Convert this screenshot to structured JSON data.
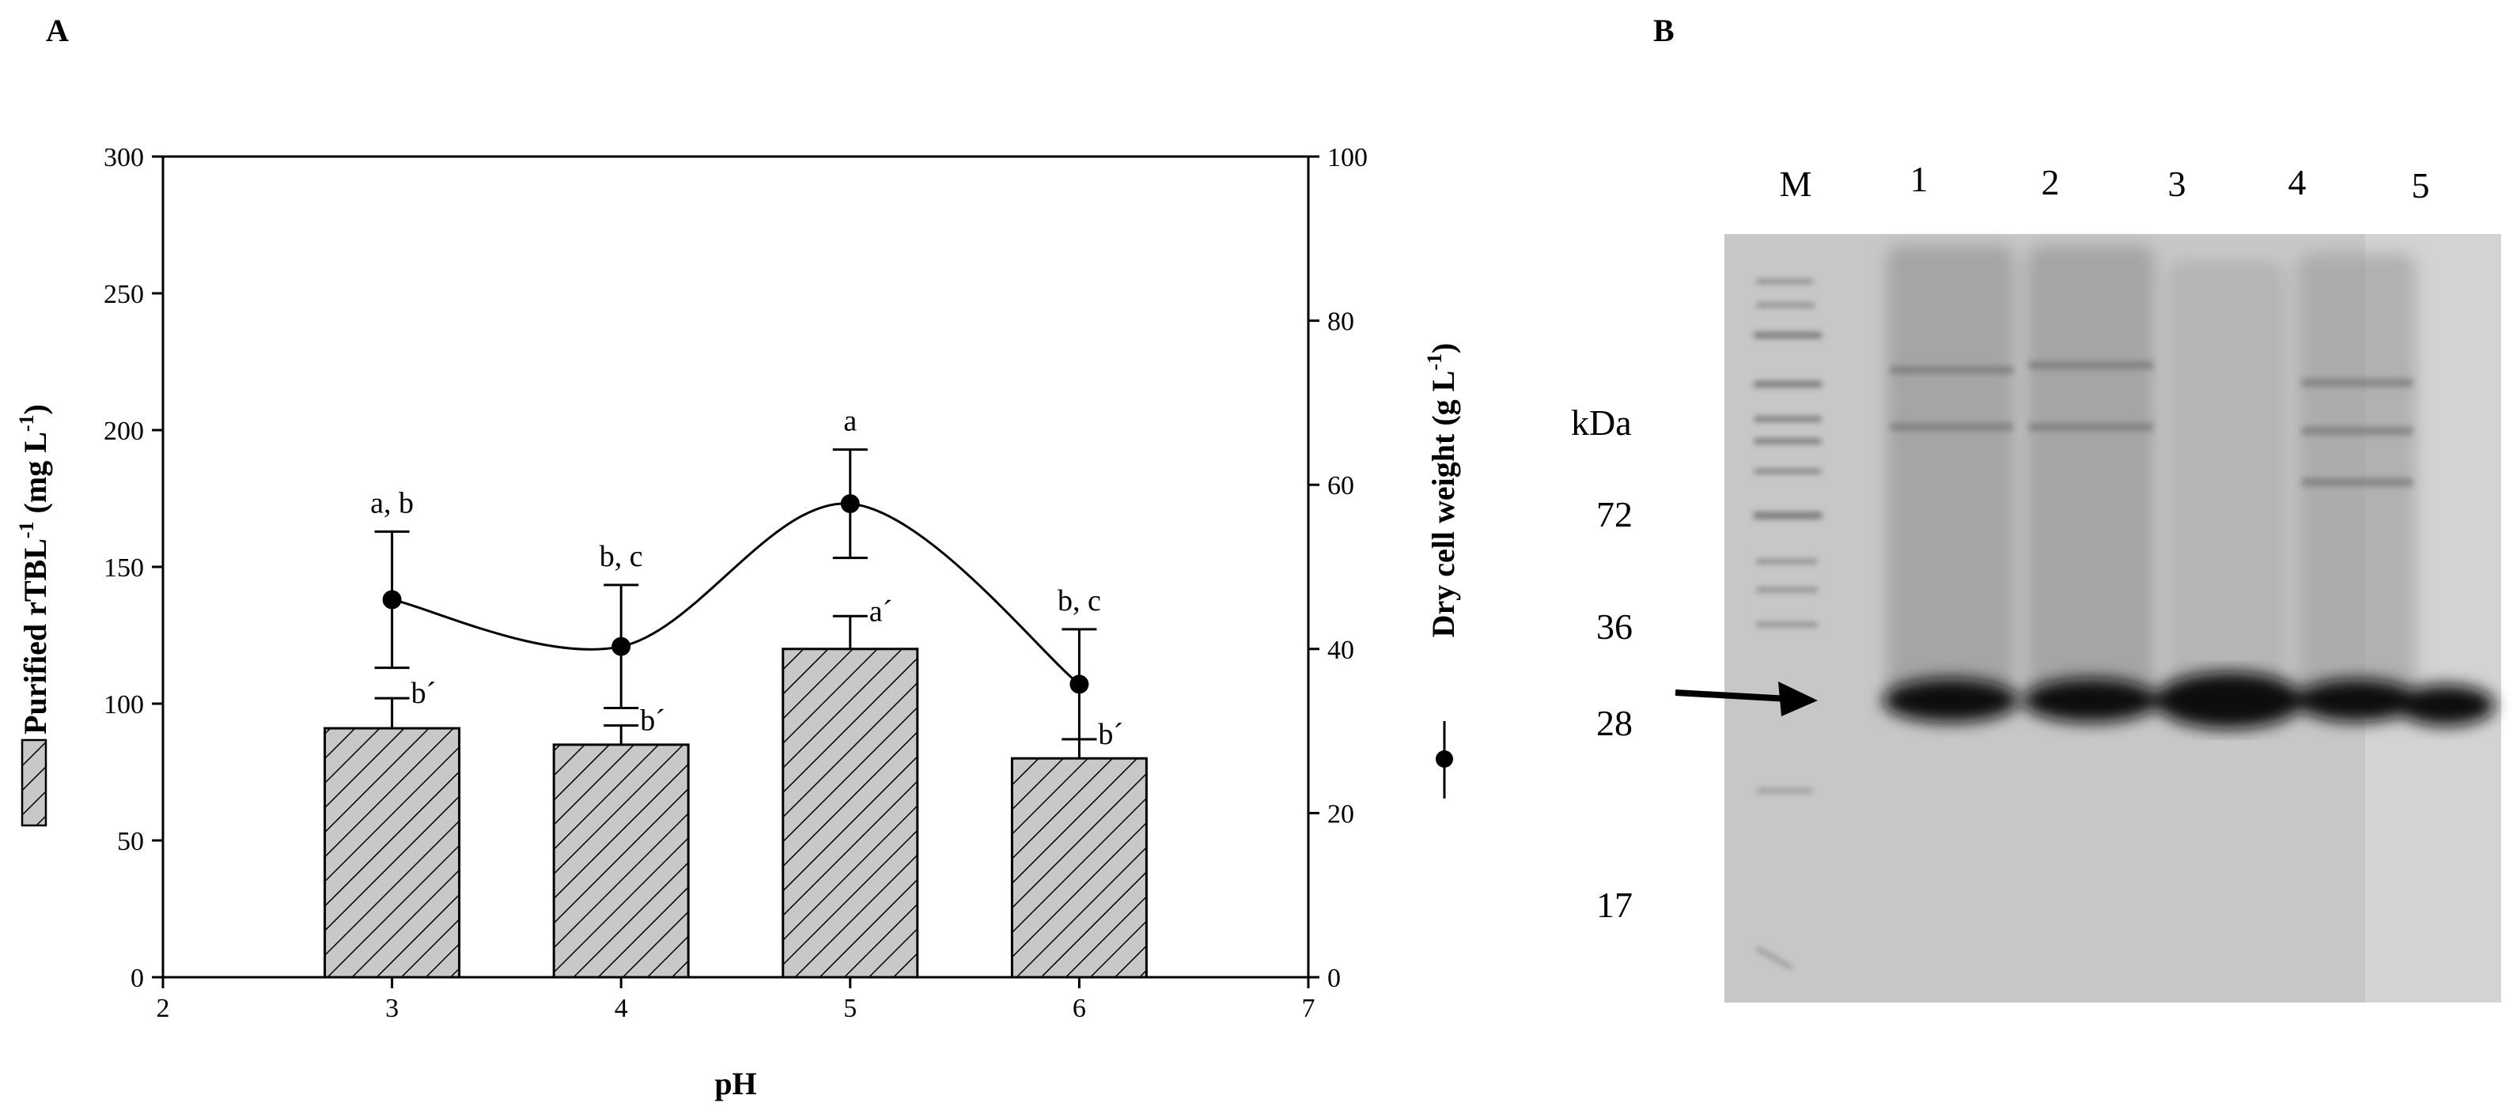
{
  "panel_a_label": "A",
  "panel_b_label": "B",
  "chart_data": {
    "type": "bar",
    "x": [
      3,
      4,
      5,
      6
    ],
    "xlabel": "pH",
    "xlim": [
      2,
      7
    ],
    "xticks": [
      2,
      3,
      4,
      5,
      6,
      7
    ],
    "grid": false,
    "legend_placement": "along axis titles (left and right)",
    "y_left": {
      "label": "Purified rTBL",
      "label_sup": "-1",
      "label_unit": "(mg L",
      "label_unit_sup": "-1",
      "label_close": ")",
      "lim": [
        0,
        300
      ],
      "ticks": [
        0,
        50,
        100,
        150,
        200,
        250,
        300
      ]
    },
    "y_right": {
      "label": "Dry cell weight (g L",
      "label_sup": "-1",
      "label_close": ")",
      "lim": [
        0,
        100
      ],
      "ticks": [
        0,
        20,
        40,
        60,
        80,
        100
      ]
    },
    "series": [
      {
        "kind": "bar",
        "axis": "left",
        "values": [
          91,
          85,
          120,
          80
        ],
        "errors": [
          11,
          7,
          12,
          7
        ],
        "annotations": [
          "b´",
          "b´",
          "a´",
          "b´"
        ],
        "color": "#c8c8c8",
        "hatch": "diagonal"
      },
      {
        "kind": "line",
        "axis": "right",
        "values": [
          46,
          40.3,
          57.7,
          35.7
        ],
        "errors": [
          8.3,
          7.5,
          6.6,
          6.7
        ],
        "annotations": [
          "a, b",
          "b, c",
          "a",
          "b, c"
        ],
        "color": "#000000",
        "marker": "circle"
      }
    ]
  },
  "gel": {
    "lane_labels": [
      "M",
      "1",
      "2",
      "3",
      "4",
      "5"
    ],
    "unit_label": "kDa",
    "markers": [
      "72",
      "36",
      "28",
      "17"
    ],
    "background": "#c6c6c6"
  }
}
